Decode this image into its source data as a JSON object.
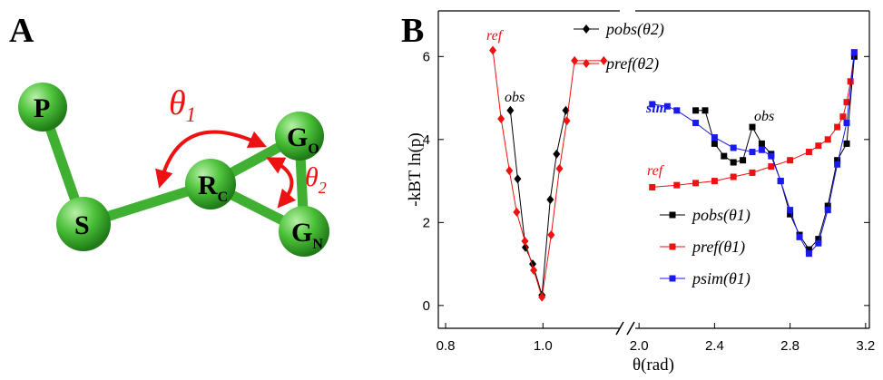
{
  "panel_labels": [
    "A",
    "B"
  ],
  "diagram": {
    "nodes": [
      {
        "main": "P"
      },
      {
        "main": "S"
      },
      {
        "main": "R",
        "sub": "C"
      },
      {
        "main": "G",
        "sub": "O"
      },
      {
        "main": "G",
        "sub": "N"
      }
    ],
    "angle_labels": [
      {
        "main": "θ",
        "sub": "1"
      },
      {
        "main": "θ",
        "sub": "2"
      }
    ]
  },
  "chart_data": [
    {
      "type": "line",
      "ylabel": "-kBT ln(p)",
      "xlabel": "θ(rad)",
      "xlim": [
        0.785,
        1.158
      ],
      "ylim": [
        -0.55,
        7.1
      ],
      "xticks": [
        0.8,
        {
          "value": 1,
          "label": "1.0"
        }
      ],
      "yticks": [
        0,
        2,
        4,
        6
      ],
      "series": [
        {
          "name": "pobs(θ2)",
          "color": "#000000",
          "marker": "diamond",
          "x": [
            0.933,
            0.948,
            0.964,
            0.979,
            0.998,
            1.015,
            1.028,
            1.047
          ],
          "values": [
            4.7,
            3.05,
            1.4,
            1.0,
            0.25,
            2.55,
            3.65,
            4.7
          ]
        },
        {
          "name": "pref(θ2)",
          "color": "#ee1111",
          "marker": "diamond",
          "x": [
            0.897,
            0.914,
            0.931,
            0.946,
            0.963,
            0.981,
            0.998,
            1.017,
            1.034,
            1.049,
            1.065,
            1.125
          ],
          "values": [
            6.15,
            4.5,
            3.25,
            2.25,
            1.55,
            0.85,
            0.2,
            1.7,
            3.3,
            4.45,
            5.9,
            5.9
          ]
        }
      ],
      "annotations": [
        {
          "text": "ref",
          "color": "#ee1111"
        },
        {
          "text": "obs",
          "color": "#000000"
        }
      ]
    },
    {
      "type": "line",
      "xlim": [
        1.98,
        3.22
      ],
      "ylim": [
        -0.55,
        7.1
      ],
      "xticks": [
        {
          "value": 2,
          "label": "2.0"
        },
        2.4,
        2.8,
        3.2
      ],
      "series": [
        {
          "name": "pobs(θ1)",
          "color": "#000000",
          "marker": "square",
          "x": [
            2.3,
            2.35,
            2.4,
            2.45,
            2.5,
            2.55,
            2.6,
            2.65,
            2.7,
            2.75,
            2.8,
            2.85,
            2.9,
            2.95,
            3.0,
            3.05,
            3.1,
            3.14
          ],
          "values": [
            4.7,
            4.7,
            3.9,
            3.6,
            3.45,
            3.5,
            4.3,
            3.9,
            3.65,
            3.0,
            2.2,
            1.7,
            1.35,
            1.6,
            2.4,
            3.5,
            3.9,
            6.0
          ]
        },
        {
          "name": "pref(θ1)",
          "color": "#ee1111",
          "marker": "square",
          "x": [
            2.07,
            2.2,
            2.3,
            2.4,
            2.5,
            2.6,
            2.7,
            2.8,
            2.9,
            2.95,
            3.0,
            3.05,
            3.08,
            3.1,
            3.12,
            3.14
          ],
          "values": [
            2.85,
            2.9,
            2.95,
            3.0,
            3.1,
            3.2,
            3.35,
            3.5,
            3.7,
            3.85,
            4.0,
            4.3,
            4.55,
            4.9,
            5.4,
            6.1
          ]
        },
        {
          "name": "psim(θ1)",
          "color": "#1a1aee",
          "marker": "square",
          "x": [
            2.07,
            2.15,
            2.2,
            2.3,
            2.4,
            2.5,
            2.6,
            2.65,
            2.7,
            2.75,
            2.8,
            2.85,
            2.9,
            2.95,
            3.0,
            3.05,
            3.1,
            3.14
          ],
          "values": [
            4.85,
            4.8,
            4.7,
            4.4,
            4.05,
            3.8,
            3.7,
            3.75,
            3.6,
            3.0,
            2.3,
            1.65,
            1.25,
            1.5,
            2.3,
            3.4,
            4.4,
            6.1
          ]
        }
      ],
      "annotations": [
        {
          "text": "sim",
          "color": "#1a1aee"
        },
        {
          "text": "obs",
          "color": "#000000"
        },
        {
          "text": "ref",
          "color": "#ee1111"
        }
      ]
    }
  ]
}
